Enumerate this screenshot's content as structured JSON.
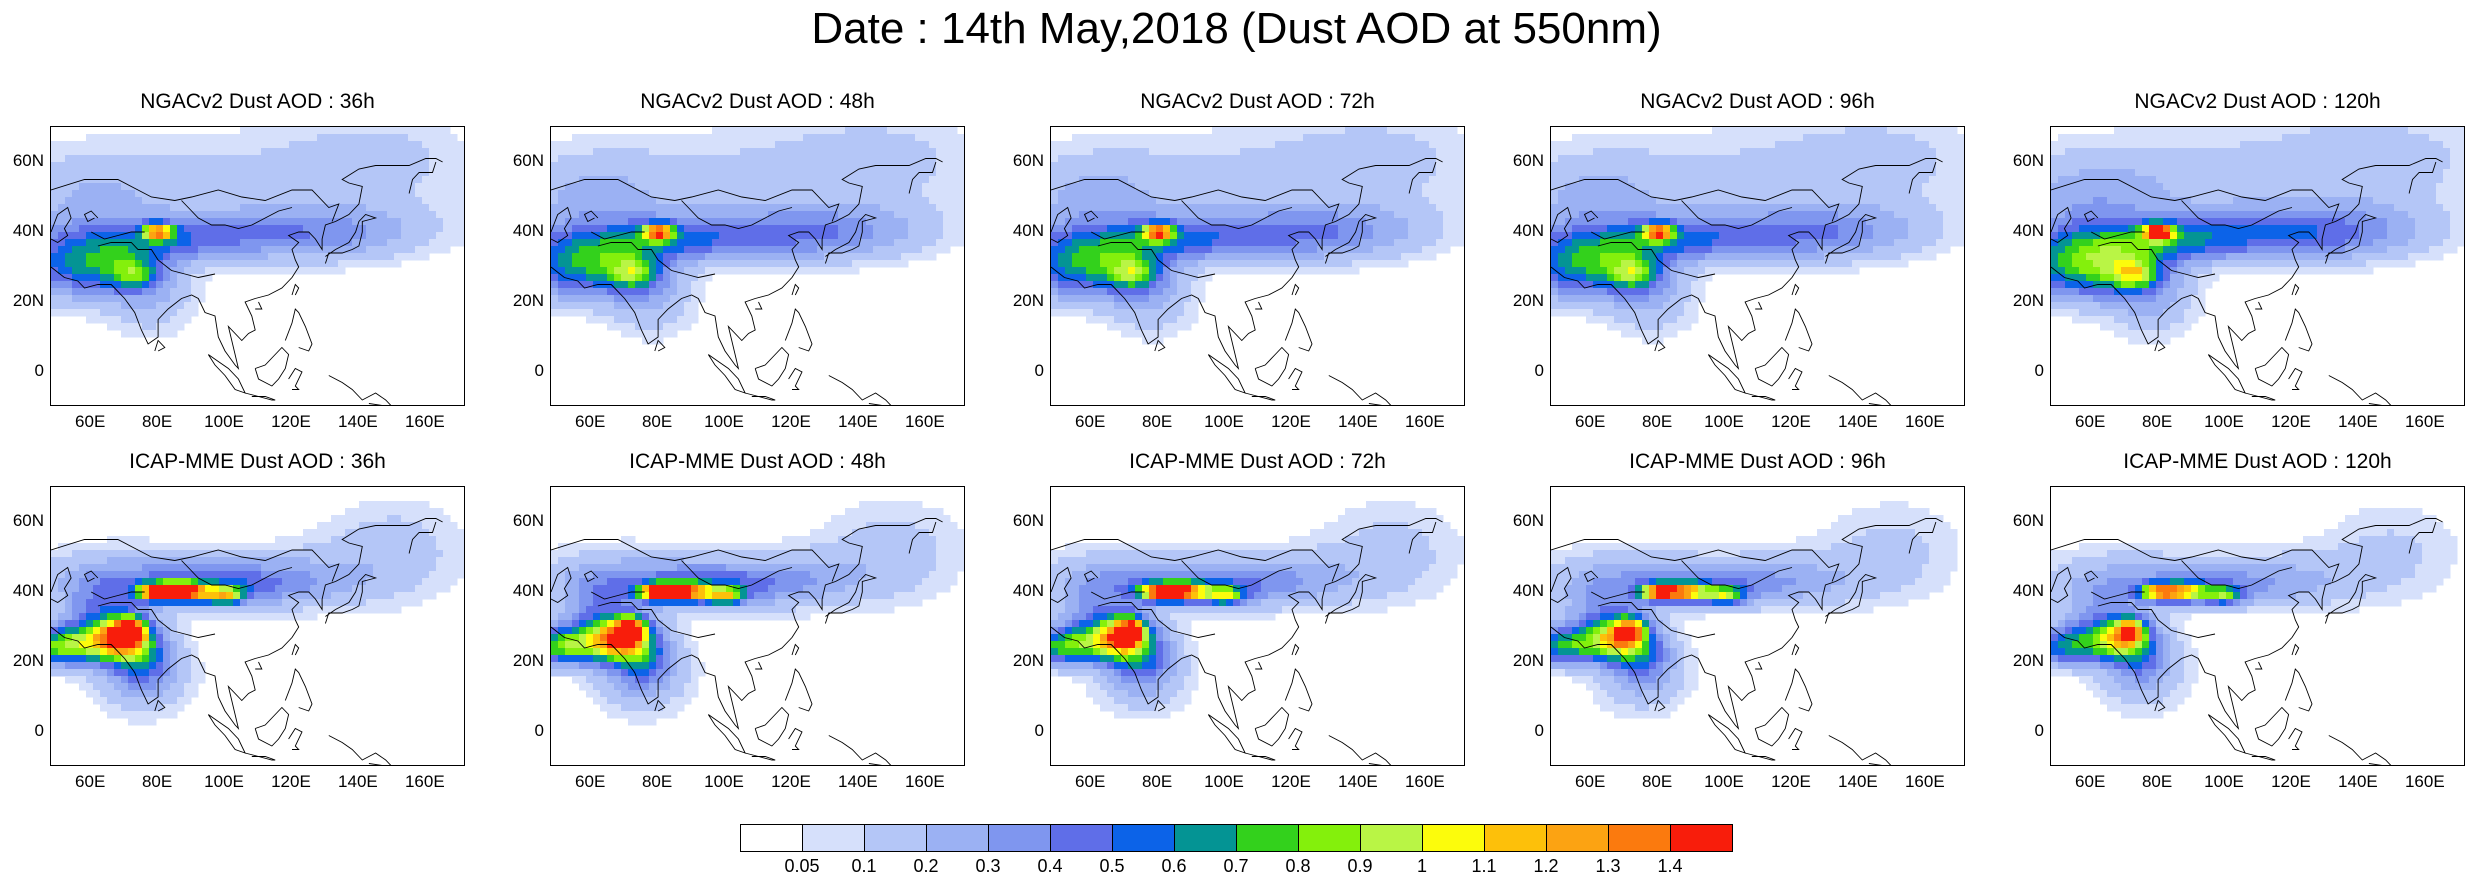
{
  "title": "Date : 14th May,2018 (Dust AOD at 550nm)",
  "axes": {
    "y_ticks": [
      "60N",
      "40N",
      "20N",
      "0"
    ],
    "x_ticks": [
      "60E",
      "80E",
      "100E",
      "120E",
      "140E",
      "160E"
    ]
  },
  "panels": [
    {
      "title": "NGACv2 Dust AOD : 36h",
      "model": "NGACv2",
      "lead": "36h",
      "intensity": 0.55
    },
    {
      "title": "NGACv2 Dust AOD : 48h",
      "model": "NGACv2",
      "lead": "48h",
      "intensity": 0.6
    },
    {
      "title": "NGACv2 Dust AOD : 72h",
      "model": "NGACv2",
      "lead": "72h",
      "intensity": 0.6
    },
    {
      "title": "NGACv2 Dust AOD : 96h",
      "model": "NGACv2",
      "lead": "96h",
      "intensity": 0.6
    },
    {
      "title": "NGACv2 Dust AOD : 120h",
      "model": "NGACv2",
      "lead": "120h",
      "intensity": 0.7
    },
    {
      "title": "ICAP-MME Dust AOD : 36h",
      "model": "ICAP-MME",
      "lead": "36h",
      "intensity": 1.3
    },
    {
      "title": "ICAP-MME Dust AOD : 48h",
      "model": "ICAP-MME",
      "lead": "48h",
      "intensity": 1.25
    },
    {
      "title": "ICAP-MME Dust AOD : 72h",
      "model": "ICAP-MME",
      "lead": "72h",
      "intensity": 1.15
    },
    {
      "title": "ICAP-MME Dust AOD : 96h",
      "model": "ICAP-MME",
      "lead": "96h",
      "intensity": 1.05
    },
    {
      "title": "ICAP-MME Dust AOD : 120h",
      "model": "ICAP-MME",
      "lead": "120h",
      "intensity": 0.95
    }
  ],
  "colorbar": {
    "labels": [
      "0.05",
      "0.1",
      "0.2",
      "0.3",
      "0.4",
      "0.5",
      "0.6",
      "0.7",
      "0.8",
      "0.9",
      "1",
      "1.1",
      "1.2",
      "1.3",
      "1.4"
    ],
    "colors": [
      "#ffffff",
      "#d6e0fb",
      "#b4c6f7",
      "#9bb1f3",
      "#7f96ef",
      "#5f6ee8",
      "#0c63e8",
      "#049494",
      "#33d11c",
      "#84f00c",
      "#b9f545",
      "#fcfc0c",
      "#fdc00a",
      "#fca312",
      "#fb7a0e",
      "#f81d0b"
    ]
  }
}
